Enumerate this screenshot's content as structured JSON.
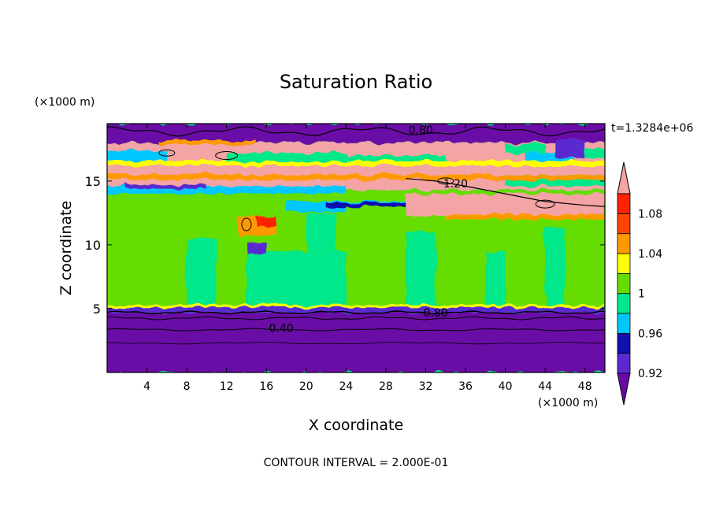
{
  "chart_data": {
    "type": "heatmap",
    "title": "Saturation Ratio",
    "xlabel": "X coordinate",
    "ylabel": "Z coordinate",
    "x_unit": "(×1000 m)",
    "y_unit": "(×1000 m)",
    "time_label": "t=1.3284e+06",
    "footer": "CONTOUR INTERVAL = 2.000E-01",
    "xlim": [
      0,
      50
    ],
    "ylim": [
      0,
      19.5
    ],
    "x_ticks": [
      4,
      8,
      12,
      16,
      20,
      24,
      28,
      32,
      36,
      40,
      44,
      48
    ],
    "x_tick_labels": [
      "4",
      "8",
      "12",
      "16",
      "20",
      "24",
      "28",
      "32",
      "36",
      "40",
      "44",
      "48"
    ],
    "y_ticks": [
      5,
      10,
      15
    ],
    "y_tick_labels": [
      "5",
      "10",
      "15"
    ],
    "contour_labels": [
      {
        "text": "0.80",
        "x": 31.5,
        "y": 19.0
      },
      {
        "text": "1.20",
        "x": 35.0,
        "y": 14.8
      },
      {
        "text": "0.80",
        "x": 33.0,
        "y": 4.7
      },
      {
        "text": "0.40",
        "x": 17.5,
        "y": 3.5
      }
    ],
    "colorbar": {
      "levels": [
        0.92,
        0.94,
        0.96,
        0.98,
        1.0,
        1.02,
        1.04,
        1.06,
        1.08,
        1.1
      ],
      "tick_labels": [
        "0.92",
        "0.96",
        "1",
        "1.04",
        "1.08"
      ],
      "tick_levels": [
        0.92,
        0.96,
        1.0,
        1.04,
        1.08
      ],
      "colors": [
        "#6a0aa6",
        "#5a2ad0",
        "#1010b0",
        "#00c8ff",
        "#00e88a",
        "#66dd00",
        "#ffff00",
        "#ff9900",
        "#ff4400",
        "#ff2200",
        "#f4a4a4"
      ]
    },
    "layers": [
      {
        "z_range": [
          0,
          4.7
        ],
        "value": "< 0.92",
        "color": "#6a0aa6"
      },
      {
        "z_range": [
          4.7,
          5.2
        ],
        "value": "0.96 - 1.0",
        "color": "#00e88a"
      },
      {
        "z_range": [
          5.2,
          14.3
        ],
        "value": "0.98 - 1.02",
        "color": "#66dd00"
      },
      {
        "z_range": [
          14.3,
          18.0
        ],
        "value": "> 1.10",
        "color": "#f4a4a4"
      },
      {
        "z_range": [
          18.0,
          19.5
        ],
        "value": "< 0.92",
        "color": "#6a0aa6"
      }
    ]
  }
}
